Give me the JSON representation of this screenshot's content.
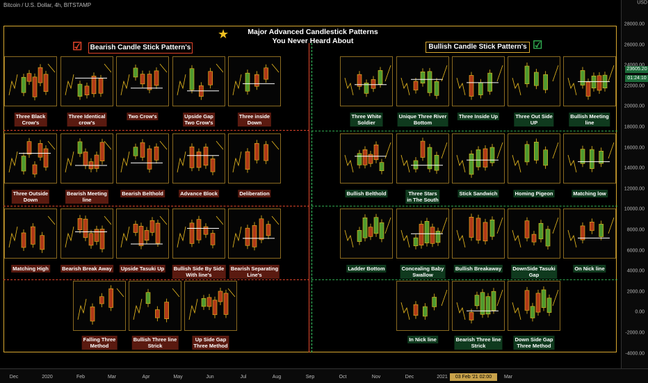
{
  "chart_label": "Bitcoin / U.S. Dollar, 4h, BITSTAMP",
  "title_line1": "Major Advanced Candlestick Patterns",
  "title_line2": "You Never Heard About",
  "bearish_header": "Bearish Candle Stick Pattern's",
  "bullish_header": "Bullish Candle Stick Pattern's",
  "currency": "USD",
  "price_label": "23605.20",
  "countdown_label": "01:24:10",
  "date_label": "03 Feb '21   02:00",
  "y_ticks": [
    "28000.00",
    "26000.00",
    "24000.00",
    "22000.00",
    "20000.00",
    "18000.00",
    "16000.00",
    "14000.00",
    "12000.00",
    "10000.00",
    "8000.00",
    "6000.00",
    "4000.00",
    "2000.00",
    "0.00",
    "-2000.00",
    "-4000.00"
  ],
  "x_ticks": [
    "Dec",
    "2020",
    "Feb",
    "Mar",
    "Apr",
    "May",
    "Jun",
    "Jul",
    "Aug",
    "Sep",
    "Oct",
    "Nov",
    "Dec",
    "2021",
    "Feb",
    "Mar"
  ],
  "bearish_patterns": [
    [
      "Three Black",
      "Crow's"
    ],
    [
      "Three Identical",
      "crow's"
    ],
    [
      "Two Crow's",
      ""
    ],
    [
      "Upside Gap",
      "Two Crow's"
    ],
    [
      "Three inside",
      "Down"
    ],
    [
      "Three Outside",
      "Down"
    ],
    [
      "Bearish Meeting",
      "line"
    ],
    [
      "Bearish Belthold",
      ""
    ],
    [
      "Advance Block",
      ""
    ],
    [
      "Deliberation",
      ""
    ],
    [
      "Matching High",
      ""
    ],
    [
      "Bearish Break Away",
      ""
    ],
    [
      "Upside Tasuki Up",
      ""
    ],
    [
      "Bullish Side By Side",
      "With line's"
    ],
    [
      "Bearish Separating",
      "Line's"
    ],
    [
      "Falling Three",
      "Method"
    ],
    [
      "Bullish Three line",
      "Strick"
    ],
    [
      "Up Side Gap",
      "Three Method"
    ]
  ],
  "bullish_patterns": [
    [
      "Three White",
      "Soldier"
    ],
    [
      "Unique Three  River",
      "Bottom"
    ],
    [
      "Three Inside Up",
      ""
    ],
    [
      "Three Out Side",
      "UP"
    ],
    [
      "Bullish Meeting",
      "line"
    ],
    [
      "Bullish Belthold",
      ""
    ],
    [
      "Three Stars",
      "in The South"
    ],
    [
      "Stick Sandwich",
      ""
    ],
    [
      "Homing Pigeon",
      ""
    ],
    [
      "Matching low",
      ""
    ],
    [
      "Ladder Bottom",
      ""
    ],
    [
      "Concealing Baby",
      "Swallow"
    ],
    [
      "Bullish Breakaway",
      ""
    ],
    [
      "DownSide Tasuki",
      "Gap"
    ],
    [
      "On Nick line",
      ""
    ],
    [
      "In Nick line",
      ""
    ],
    [
      "Bearish Three line",
      "Strick"
    ],
    [
      "Down Side Gap",
      "Three Method"
    ]
  ],
  "colors": {
    "bear": "#e0442a",
    "bull": "#2fa84f",
    "candle_red": "#b03a18",
    "candle_green": "#4f9a2f",
    "line": "#f0c020",
    "frame": "#d8a830"
  }
}
